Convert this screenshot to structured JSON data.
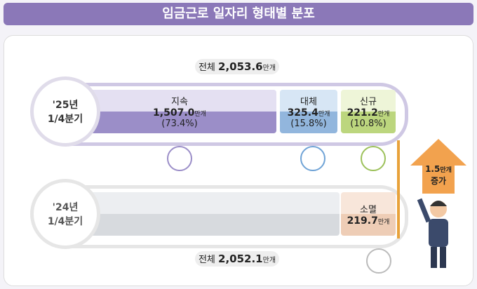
{
  "header": {
    "title": "임금근로 일자리 형태별 분포"
  },
  "current": {
    "total_label": "전체",
    "total": "2,053.6",
    "total_unit": "만개",
    "period_year": "'25년",
    "period_quarter": "1/4분기",
    "segments": [
      {
        "name": "지속",
        "value": "1,507.0",
        "unit": "만개",
        "share": "(73.4%)"
      },
      {
        "name": "대체",
        "value": "325.4",
        "unit": "만개",
        "share": "(15.8%)"
      },
      {
        "name": "신규",
        "value": "221.2",
        "unit": "만개",
        "share": "(10.8%)"
      }
    ]
  },
  "previous": {
    "total_label": "전체",
    "total": "2,052.1",
    "total_unit": "만개",
    "period_year": "'24년",
    "period_quarter": "1/4분기",
    "segment": {
      "name": "소멸",
      "value": "219.7",
      "unit": "만개"
    }
  },
  "change": {
    "value": "1.5",
    "unit": "만개",
    "label": "증가"
  }
}
